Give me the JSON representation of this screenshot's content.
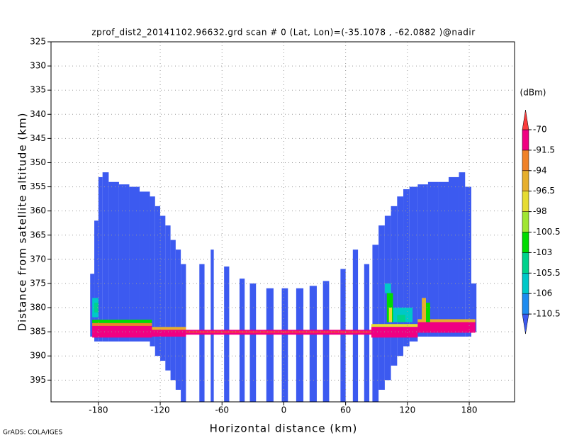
{
  "chart_data": {
    "type": "heatmap",
    "title": "zprof_dist2_20141102.96632.grd  scan # 0  (Lat, Lon)=(-35.1078 , -62.0882 )@nadir",
    "x_label": "Horizontal distance (km)",
    "y_label": "Distance from satellite altitude (km)",
    "colorbar_label": "(dBm)",
    "credit": "GrADS: COLA/IGES",
    "xlim": [
      -226,
      224
    ],
    "ylim": [
      399.5,
      325
    ],
    "xticks": [
      -180,
      -120,
      -60,
      0,
      60,
      120,
      180
    ],
    "yticks": [
      325,
      330,
      335,
      340,
      345,
      350,
      355,
      360,
      365,
      370,
      375,
      380,
      385,
      390,
      395
    ],
    "grid": true,
    "levels": [
      -110.5,
      -106,
      -105.5,
      -103,
      -100.5,
      -98,
      -96.5,
      -94,
      -91.5,
      -70
    ],
    "colors": [
      "#3c5af0",
      "#1e8cf0",
      "#00c8c8",
      "#00d28c",
      "#00dc00",
      "#a0e632",
      "#e6dc32",
      "#e6af2d",
      "#f08228",
      "#f00082",
      "#fa3c3c"
    ],
    "fill_value": -115,
    "columns": [
      [
        -188,
        -184,
        373,
        386
      ],
      [
        -184,
        -180,
        362,
        387
      ],
      [
        -180,
        -176,
        353,
        387
      ],
      [
        -176,
        -170,
        352,
        387
      ],
      [
        -170,
        -160,
        354,
        387
      ],
      [
        -160,
        -150,
        354.5,
        387
      ],
      [
        -150,
        -140,
        355,
        387
      ],
      [
        -140,
        -130,
        356,
        387
      ],
      [
        -130,
        -125,
        357,
        388
      ],
      [
        -125,
        -120,
        359,
        390
      ],
      [
        -120,
        -115,
        361,
        391
      ],
      [
        -115,
        -110,
        363,
        393
      ],
      [
        -110,
        -105,
        366,
        395
      ],
      [
        -105,
        -100,
        368,
        397
      ],
      [
        -100,
        -95,
        371,
        399.5
      ],
      [
        -82,
        -77,
        371,
        399.5
      ],
      [
        -71,
        -68,
        368,
        399.5
      ],
      [
        -58,
        -53,
        371.5,
        399.5
      ],
      [
        -43,
        -38,
        374,
        399.5
      ],
      [
        -33,
        -27,
        375,
        399.5
      ],
      [
        -17,
        -10,
        376,
        399.5
      ],
      [
        -2,
        4,
        376,
        399.5
      ],
      [
        12,
        19,
        376,
        399.5
      ],
      [
        25,
        32,
        375.5,
        399.5
      ],
      [
        38,
        44,
        374.5,
        399.5
      ],
      [
        55,
        60,
        372,
        399.5
      ],
      [
        67,
        72,
        368,
        399.5
      ],
      [
        78,
        83,
        371,
        399.5
      ],
      [
        86,
        92,
        367,
        399.5
      ],
      [
        92,
        98,
        363,
        397
      ],
      [
        98,
        104,
        361,
        395
      ],
      [
        104,
        110,
        359,
        392
      ],
      [
        110,
        116,
        357,
        390
      ],
      [
        116,
        122,
        355.5,
        388
      ],
      [
        122,
        130,
        355,
        387
      ],
      [
        130,
        140,
        354.5,
        386
      ],
      [
        140,
        150,
        354,
        386
      ],
      [
        150,
        160,
        354,
        386
      ],
      [
        160,
        170,
        353,
        386
      ],
      [
        170,
        176,
        352,
        386
      ],
      [
        176,
        182,
        355,
        386
      ],
      [
        182,
        187,
        375,
        385
      ]
    ],
    "echoes": [
      [
        -186,
        -128,
        382.5,
        383.2,
        -103
      ],
      [
        -186,
        -128,
        383.2,
        383.8,
        -94
      ],
      [
        -186,
        -128,
        383.8,
        386.2,
        -91.5
      ],
      [
        -128,
        -95,
        384,
        384.6,
        -96.5
      ],
      [
        -128,
        -95,
        384.6,
        386,
        -91.5
      ],
      [
        -95,
        85,
        384.6,
        385.6,
        -91.5
      ],
      [
        -95,
        85,
        384.9,
        385.2,
        -70
      ],
      [
        85,
        130,
        383.4,
        384,
        -98
      ],
      [
        85,
        130,
        384,
        386.2,
        -91.5
      ],
      [
        130,
        186,
        382.4,
        383,
        -96.5
      ],
      [
        130,
        186,
        383,
        385.2,
        -91.5
      ],
      [
        -186,
        -180,
        378,
        382,
        -106
      ],
      [
        -184,
        -180,
        379,
        381,
        -105.5
      ],
      [
        98,
        104,
        375,
        377,
        -106
      ],
      [
        100,
        106,
        377,
        383,
        -103
      ],
      [
        102,
        105,
        380,
        383,
        -98
      ],
      [
        106,
        125,
        380,
        383,
        -106
      ],
      [
        110,
        118,
        381.5,
        383,
        -105.5
      ],
      [
        134,
        138,
        378,
        383,
        -96.5
      ],
      [
        138,
        142,
        379,
        383,
        -103
      ]
    ]
  }
}
